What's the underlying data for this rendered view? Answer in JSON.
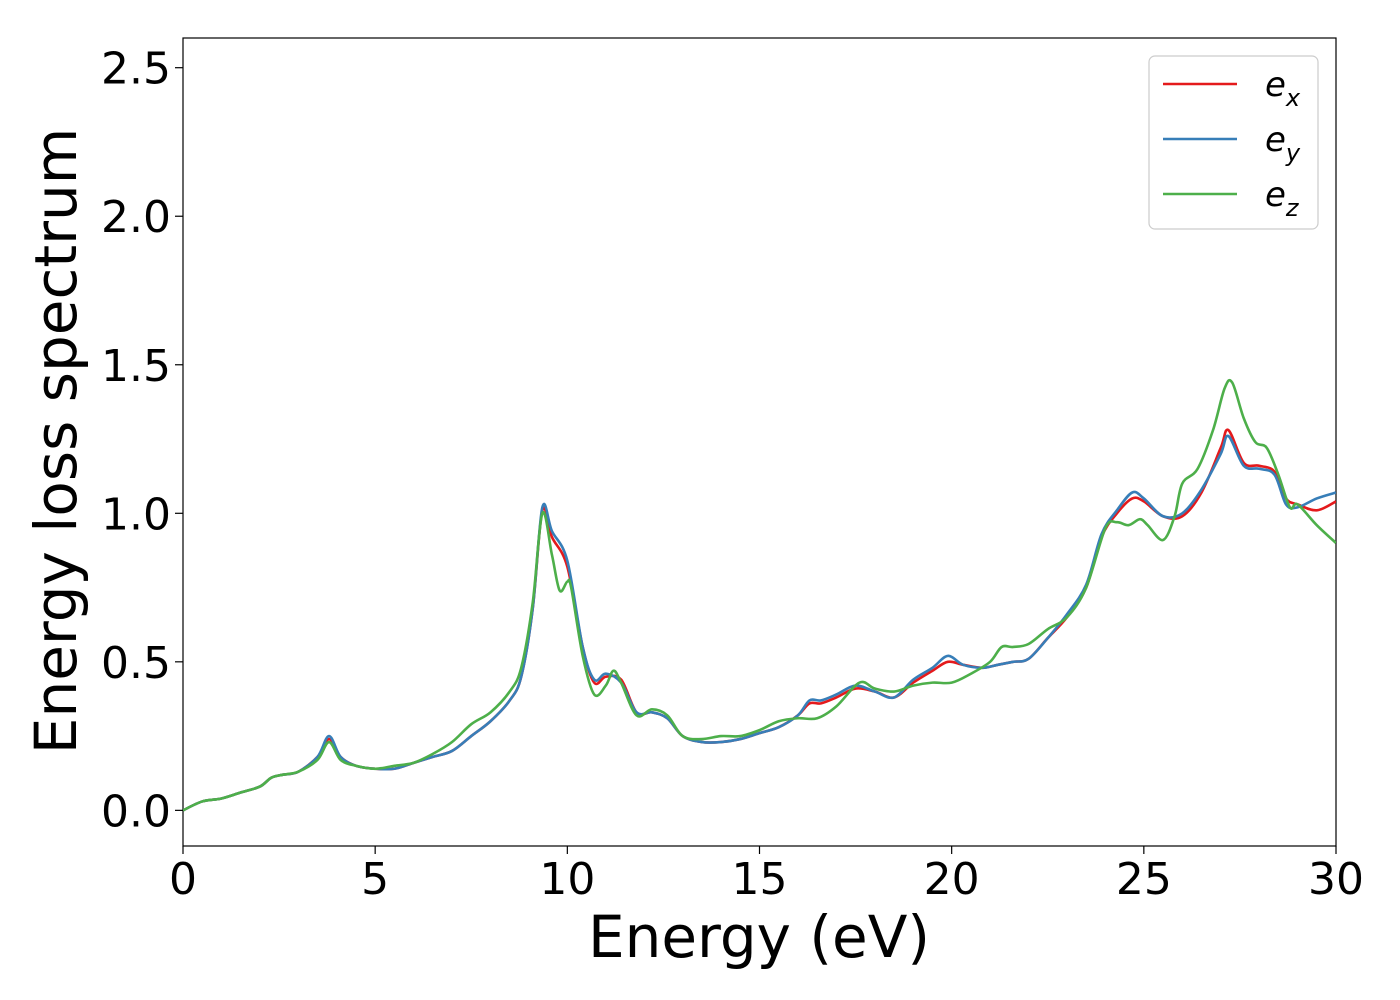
{
  "chart_data": {
    "type": "line",
    "xlabel": "Energy (eV)",
    "ylabel": "Energy loss spectrum",
    "xlim": [
      0,
      30
    ],
    "ylim": [
      -0.12,
      2.6
    ],
    "xticks": [
      "0",
      "5",
      "10",
      "15",
      "20",
      "25",
      "30"
    ],
    "yticks": [
      "0.0",
      "0.5",
      "1.0",
      "1.5",
      "2.0",
      "2.5"
    ],
    "grid": false,
    "legend_position": "top-right",
    "series": [
      {
        "name": "e",
        "subscript": "x",
        "color": "#e41a1c",
        "x": [
          0,
          0.5,
          1,
          1.5,
          2,
          2.3,
          2.6,
          3,
          3.5,
          3.8,
          4.1,
          4.5,
          5,
          5.5,
          6,
          6.5,
          7,
          7.5,
          8,
          8.5,
          8.8,
          9.1,
          9.35,
          9.6,
          10,
          10.4,
          10.7,
          11,
          11.4,
          11.8,
          12.2,
          12.6,
          13,
          13.5,
          14,
          14.5,
          15,
          15.5,
          16,
          16.3,
          16.6,
          17,
          17.5,
          18,
          18.5,
          19,
          19.5,
          19.9,
          20.3,
          20.8,
          21.2,
          21.6,
          22,
          22.5,
          23,
          23.5,
          23.9,
          24.3,
          24.7,
          25,
          25.5,
          26,
          26.5,
          27,
          27.2,
          27.6,
          28,
          28.4,
          28.7,
          29,
          29.5,
          30
        ],
        "values": [
          0,
          0.03,
          0.04,
          0.06,
          0.08,
          0.11,
          0.12,
          0.13,
          0.18,
          0.24,
          0.18,
          0.15,
          0.14,
          0.14,
          0.16,
          0.18,
          0.2,
          0.25,
          0.3,
          0.37,
          0.45,
          0.68,
          1.01,
          0.92,
          0.82,
          0.55,
          0.43,
          0.45,
          0.44,
          0.33,
          0.33,
          0.31,
          0.25,
          0.23,
          0.23,
          0.24,
          0.26,
          0.28,
          0.32,
          0.36,
          0.36,
          0.38,
          0.41,
          0.4,
          0.38,
          0.43,
          0.47,
          0.5,
          0.49,
          0.48,
          0.49,
          0.5,
          0.51,
          0.58,
          0.65,
          0.75,
          0.92,
          1,
          1.05,
          1.04,
          0.99,
          0.99,
          1.07,
          1.22,
          1.28,
          1.17,
          1.16,
          1.14,
          1.05,
          1.03,
          1.01,
          1.04
        ]
      },
      {
        "name": "e",
        "subscript": "y",
        "color": "#377eb8",
        "x": [
          0,
          0.5,
          1,
          1.5,
          2,
          2.3,
          2.6,
          3,
          3.5,
          3.8,
          4.1,
          4.5,
          5,
          5.5,
          6,
          6.5,
          7,
          7.5,
          8,
          8.5,
          8.8,
          9.1,
          9.35,
          9.6,
          10,
          10.4,
          10.7,
          11,
          11.4,
          11.8,
          12.2,
          12.6,
          13,
          13.5,
          14,
          14.5,
          15,
          15.5,
          16,
          16.3,
          16.6,
          17,
          17.5,
          18,
          18.5,
          19,
          19.5,
          19.9,
          20.3,
          20.8,
          21.2,
          21.6,
          22,
          22.5,
          23,
          23.5,
          23.9,
          24.3,
          24.7,
          25,
          25.5,
          26,
          26.5,
          27,
          27.2,
          27.6,
          28,
          28.4,
          28.7,
          29,
          29.5,
          30
        ],
        "values": [
          0,
          0.03,
          0.04,
          0.06,
          0.08,
          0.11,
          0.12,
          0.13,
          0.18,
          0.25,
          0.18,
          0.15,
          0.14,
          0.14,
          0.16,
          0.18,
          0.2,
          0.25,
          0.3,
          0.37,
          0.45,
          0.68,
          1.02,
          0.94,
          0.84,
          0.55,
          0.44,
          0.46,
          0.43,
          0.33,
          0.33,
          0.31,
          0.25,
          0.23,
          0.23,
          0.24,
          0.26,
          0.28,
          0.32,
          0.37,
          0.37,
          0.39,
          0.42,
          0.4,
          0.38,
          0.44,
          0.48,
          0.52,
          0.49,
          0.48,
          0.49,
          0.5,
          0.51,
          0.58,
          0.66,
          0.76,
          0.93,
          1.01,
          1.07,
          1.05,
          0.99,
          1.0,
          1.08,
          1.2,
          1.26,
          1.16,
          1.15,
          1.13,
          1.03,
          1.02,
          1.05,
          1.07
        ]
      },
      {
        "name": "e",
        "subscript": "z",
        "color": "#4daf4a",
        "x": [
          0,
          0.5,
          1,
          1.5,
          2,
          2.3,
          2.6,
          3,
          3.5,
          3.8,
          4.1,
          4.5,
          5,
          5.5,
          6,
          6.5,
          7,
          7.5,
          8,
          8.5,
          8.8,
          9.1,
          9.35,
          9.6,
          9.8,
          10,
          10.1,
          10.4,
          10.7,
          11,
          11.2,
          11.4,
          11.8,
          12.2,
          12.6,
          13,
          13.5,
          14,
          14.5,
          15,
          15.5,
          16,
          16.5,
          17,
          17.6,
          18,
          18.5,
          19,
          19.5,
          20,
          20.5,
          21,
          21.3,
          21.6,
          22,
          22.5,
          23,
          23.5,
          24,
          24.3,
          24.6,
          24.9,
          25.1,
          25.5,
          25.8,
          26,
          26.4,
          26.8,
          27.1,
          27.3,
          27.6,
          27.9,
          28.2,
          28.5,
          28.8,
          29,
          29.5,
          30
        ],
        "values": [
          0,
          0.03,
          0.04,
          0.06,
          0.08,
          0.11,
          0.12,
          0.13,
          0.17,
          0.23,
          0.17,
          0.15,
          0.14,
          0.15,
          0.16,
          0.19,
          0.23,
          0.29,
          0.33,
          0.4,
          0.48,
          0.7,
          1.0,
          0.86,
          0.74,
          0.77,
          0.75,
          0.52,
          0.39,
          0.42,
          0.47,
          0.43,
          0.32,
          0.34,
          0.32,
          0.25,
          0.24,
          0.25,
          0.25,
          0.27,
          0.3,
          0.31,
          0.31,
          0.35,
          0.43,
          0.41,
          0.4,
          0.42,
          0.43,
          0.43,
          0.46,
          0.5,
          0.55,
          0.55,
          0.56,
          0.61,
          0.65,
          0.75,
          0.95,
          0.97,
          0.96,
          0.98,
          0.96,
          0.91,
          0.99,
          1.1,
          1.15,
          1.28,
          1.42,
          1.44,
          1.32,
          1.24,
          1.22,
          1.13,
          1.02,
          1.03,
          0.96,
          0.9
        ]
      }
    ]
  }
}
